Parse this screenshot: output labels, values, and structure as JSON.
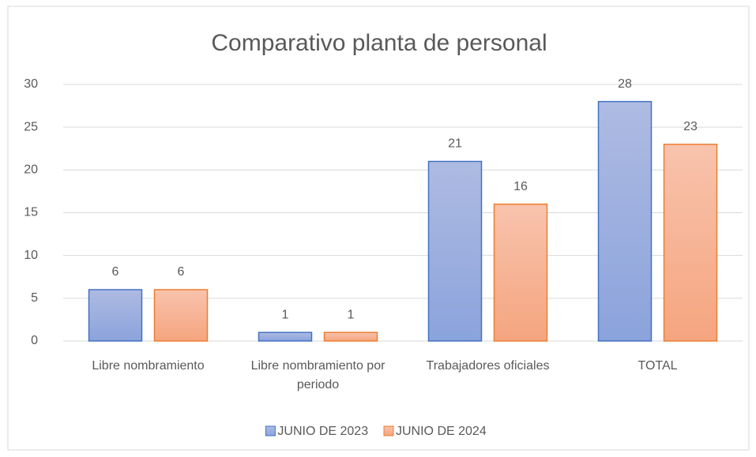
{
  "chart_data": {
    "type": "bar",
    "title": "Comparativo planta de personal",
    "categories": [
      "Libre nombramiento",
      "Libre nombramiento por periodo",
      "Trabajadores oficiales",
      "TOTAL"
    ],
    "series": [
      {
        "name": "JUNIO DE 2023",
        "color": "#4472c4",
        "values": [
          6,
          1,
          21,
          28
        ]
      },
      {
        "name": "JUNIO DE 2024",
        "color": "#ed7d31",
        "values": [
          6,
          1,
          16,
          23
        ]
      }
    ],
    "ylim": [
      0,
      30
    ],
    "yticks": [
      0,
      5,
      10,
      15,
      20,
      25,
      30
    ],
    "grid": true,
    "legend": "bottom"
  }
}
